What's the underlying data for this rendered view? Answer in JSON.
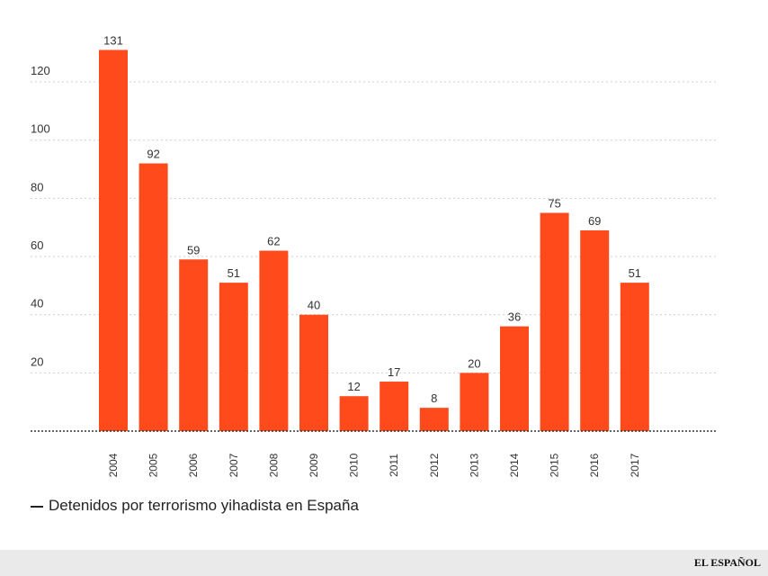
{
  "chart_data": {
    "type": "bar",
    "categories": [
      "2004",
      "2005",
      "2006",
      "2007",
      "2008",
      "2009",
      "2010",
      "2011",
      "2012",
      "2013",
      "2014",
      "2015",
      "2016",
      "2017"
    ],
    "values": [
      131,
      92,
      59,
      51,
      62,
      40,
      12,
      17,
      8,
      20,
      36,
      75,
      69,
      51
    ],
    "yticks": [
      20,
      40,
      60,
      80,
      100,
      120
    ],
    "ylim": [
      0,
      131
    ],
    "legend": "Detenidos por terrorismo yihadista en España",
    "bar_color": "#ff4a1c",
    "grid": true
  },
  "footer": {
    "brand": "EL ESPAÑOL"
  }
}
